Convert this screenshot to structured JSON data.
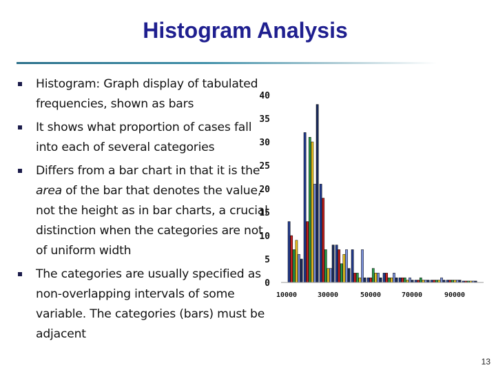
{
  "slide": {
    "title": "Histogram Analysis",
    "page_number": "13"
  },
  "bullets": [
    {
      "text": "Histogram: Graph display of tabulated frequencies, shown as bars"
    },
    {
      "text": "It shows what proportion of cases fall into each of several categories"
    },
    {
      "parts": [
        "Differs from a bar chart in that it is the ",
        "area",
        " of the bar that denotes the value, not the height as in bar charts, a crucial distinction when the categories are not of uniform width"
      ]
    },
    {
      "text": "The categories are usually specified as non-overlapping intervals of some variable. The categories (bars) must be adjacent"
    }
  ],
  "chart_data": {
    "type": "bar",
    "x_ticks": [
      "10000",
      "30000",
      "50000",
      "70000",
      "90000"
    ],
    "y_ticks": [
      "0",
      "5",
      "10",
      "15",
      "20",
      "25",
      "30",
      "35",
      "40"
    ],
    "ylim": [
      0,
      40
    ],
    "grid": false,
    "series_colors": [
      "#223a8c",
      "#c42020",
      "#2a9a4a",
      "#e8c020",
      "#7a8fd8",
      "#1a2a5a"
    ],
    "groups": [
      [
        13,
        10,
        7,
        9,
        6,
        5
      ],
      [
        32,
        13,
        31,
        30,
        21,
        38
      ],
      [
        21,
        18,
        7,
        3,
        3,
        8
      ],
      [
        8,
        7,
        4,
        6,
        7,
        3
      ],
      [
        7,
        2,
        2,
        1,
        7,
        1
      ],
      [
        1,
        1,
        3,
        2,
        2,
        1
      ],
      [
        2,
        2,
        1,
        1,
        2,
        1
      ],
      [
        1,
        1,
        1,
        0.5,
        1,
        0.5
      ],
      [
        0.5,
        0.5,
        1,
        0.5,
        0.5,
        0.5
      ],
      [
        0.5,
        0.5,
        0.5,
        0.5,
        1,
        0.5
      ],
      [
        0.5,
        0.5,
        0.5,
        0.5,
        0.5,
        0.5
      ],
      [
        0.3,
        0.3,
        0.3,
        0.3,
        0.3,
        0.3
      ]
    ]
  }
}
